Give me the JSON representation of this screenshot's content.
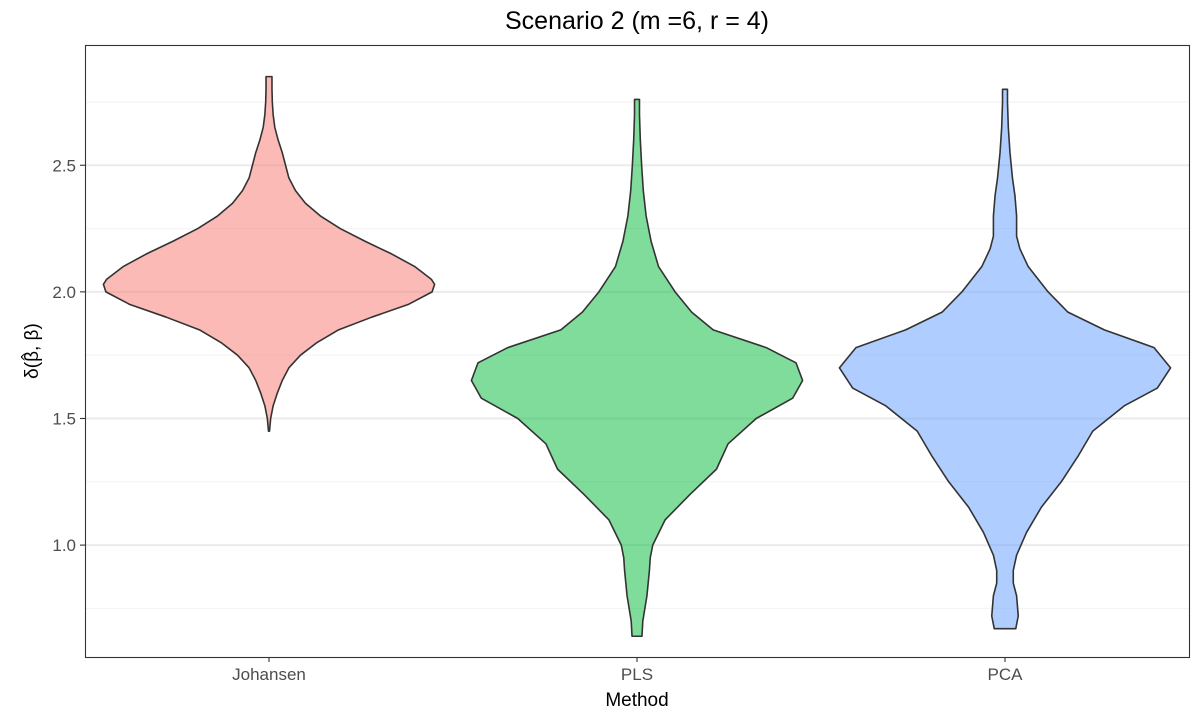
{
  "chart_data": {
    "type": "violin",
    "title": "Scenario 2 (m =6, r = 4)",
    "xlabel": "Method",
    "ylabel": "δ(β̂, β)",
    "ylabel_main": "δ(β, β)",
    "ylabel_hat": "^",
    "categories": [
      "Johansen",
      "PLS",
      "PCA"
    ],
    "colors": [
      "#F8766D",
      "#00BA38",
      "#619CFF"
    ],
    "ylim": [
      0.5581,
      2.9749
    ],
    "yticks": [
      1.0,
      1.5,
      2.0,
      2.5
    ],
    "ytick_labels": [
      "1.0",
      "1.5",
      "2.0",
      "2.5"
    ],
    "grid": true,
    "series": [
      {
        "name": "Johansen",
        "min": 1.45,
        "max": 2.85,
        "profile": [
          [
            1.45,
            0.003
          ],
          [
            1.5,
            0.01
          ],
          [
            1.55,
            0.025
          ],
          [
            1.6,
            0.05
          ],
          [
            1.65,
            0.08
          ],
          [
            1.7,
            0.12
          ],
          [
            1.75,
            0.19
          ],
          [
            1.8,
            0.29
          ],
          [
            1.85,
            0.42
          ],
          [
            1.9,
            0.62
          ],
          [
            1.95,
            0.84
          ],
          [
            2.0,
            0.985
          ],
          [
            2.03,
            1.0
          ],
          [
            2.05,
            0.98
          ],
          [
            2.1,
            0.88
          ],
          [
            2.15,
            0.74
          ],
          [
            2.2,
            0.58
          ],
          [
            2.25,
            0.43
          ],
          [
            2.3,
            0.31
          ],
          [
            2.35,
            0.22
          ],
          [
            2.4,
            0.16
          ],
          [
            2.45,
            0.12
          ],
          [
            2.5,
            0.1
          ],
          [
            2.55,
            0.08
          ],
          [
            2.6,
            0.055
          ],
          [
            2.65,
            0.035
          ],
          [
            2.7,
            0.025
          ],
          [
            2.75,
            0.02
          ],
          [
            2.8,
            0.018
          ],
          [
            2.85,
            0.018
          ]
        ]
      },
      {
        "name": "PLS",
        "min": 0.64,
        "max": 2.76,
        "profile": [
          [
            0.64,
            0.03
          ],
          [
            0.7,
            0.035
          ],
          [
            0.8,
            0.06
          ],
          [
            0.9,
            0.075
          ],
          [
            0.95,
            0.08
          ],
          [
            1.0,
            0.095
          ],
          [
            1.1,
            0.17
          ],
          [
            1.2,
            0.32
          ],
          [
            1.3,
            0.48
          ],
          [
            1.4,
            0.55
          ],
          [
            1.5,
            0.72
          ],
          [
            1.58,
            0.94
          ],
          [
            1.65,
            1.0
          ],
          [
            1.72,
            0.96
          ],
          [
            1.78,
            0.78
          ],
          [
            1.85,
            0.46
          ],
          [
            1.92,
            0.33
          ],
          [
            2.0,
            0.23
          ],
          [
            2.1,
            0.13
          ],
          [
            2.2,
            0.085
          ],
          [
            2.3,
            0.055
          ],
          [
            2.4,
            0.038
          ],
          [
            2.5,
            0.028
          ],
          [
            2.6,
            0.02
          ],
          [
            2.7,
            0.015
          ],
          [
            2.76,
            0.015
          ]
        ]
      },
      {
        "name": "PCA",
        "min": 0.67,
        "max": 2.8,
        "profile": [
          [
            0.67,
            0.065
          ],
          [
            0.72,
            0.08
          ],
          [
            0.8,
            0.07
          ],
          [
            0.85,
            0.05
          ],
          [
            0.9,
            0.05
          ],
          [
            0.96,
            0.07
          ],
          [
            1.05,
            0.13
          ],
          [
            1.15,
            0.22
          ],
          [
            1.25,
            0.34
          ],
          [
            1.35,
            0.44
          ],
          [
            1.45,
            0.53
          ],
          [
            1.55,
            0.72
          ],
          [
            1.62,
            0.92
          ],
          [
            1.7,
            1.0
          ],
          [
            1.78,
            0.9
          ],
          [
            1.85,
            0.6
          ],
          [
            1.92,
            0.38
          ],
          [
            2.0,
            0.26
          ],
          [
            2.1,
            0.14
          ],
          [
            2.17,
            0.09
          ],
          [
            2.22,
            0.07
          ],
          [
            2.3,
            0.07
          ],
          [
            2.38,
            0.06
          ],
          [
            2.45,
            0.045
          ],
          [
            2.55,
            0.03
          ],
          [
            2.65,
            0.02
          ],
          [
            2.75,
            0.015
          ],
          [
            2.8,
            0.015
          ]
        ]
      }
    ]
  }
}
